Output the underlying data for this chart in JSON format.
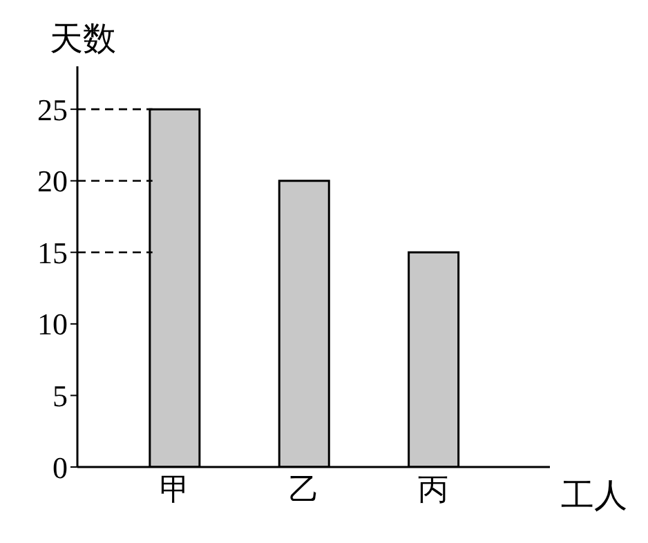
{
  "chart_data": {
    "type": "bar",
    "categories": [
      "甲",
      "乙",
      "丙"
    ],
    "values": [
      25,
      20,
      15
    ],
    "color": "#c8c8c8",
    "ylabel": "天数",
    "xlabel": "工人",
    "ylim": [
      0,
      28
    ],
    "yticks": [
      0,
      5,
      10,
      15,
      20,
      25
    ],
    "grid": false,
    "legend": false,
    "ref_lines": [
      {
        "axis": "y",
        "value": 25,
        "line_style": "dashed",
        "color": "#000000"
      },
      {
        "axis": "y",
        "value": 20,
        "line_style": "dashed",
        "color": "#000000"
      },
      {
        "axis": "y",
        "value": 15,
        "line_style": "dashed",
        "color": "#000000"
      }
    ]
  }
}
